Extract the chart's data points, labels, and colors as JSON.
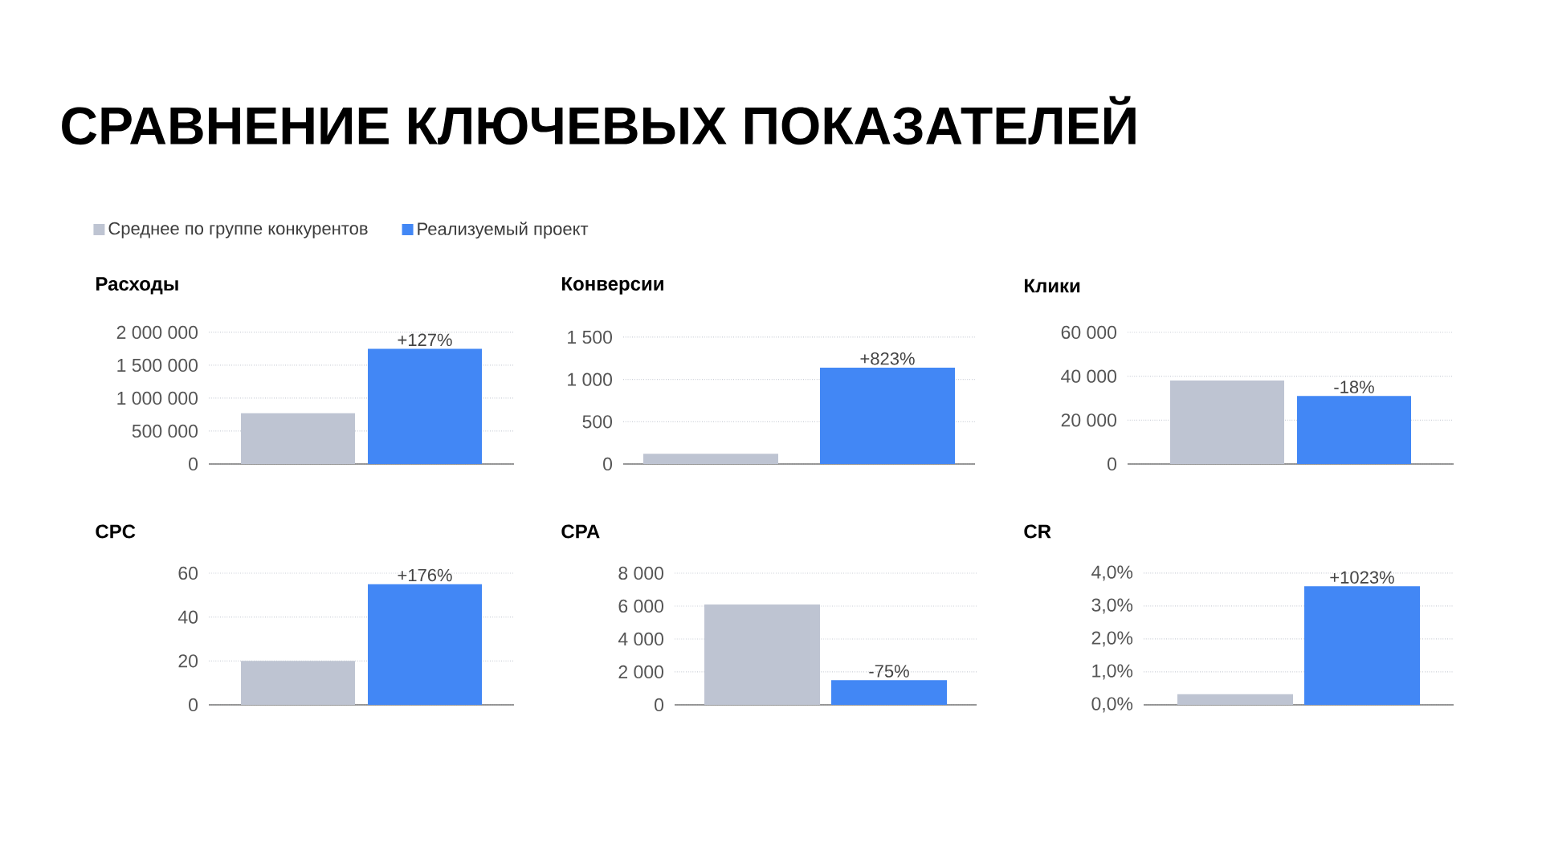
{
  "chart_data": [
    {
      "type": "other",
      "title": "СРАВНЕНИЕ КЛЮЧЕВЫХ ПОКАЗАТЕЛЕЙ"
    },
    {
      "type": "bar",
      "title": "Расходы",
      "categories": [
        null
      ],
      "series": [
        {
          "name": "Среднее по группе конкурентов",
          "color": "#bec4d2",
          "values": [
            770000
          ]
        },
        {
          "name": "Реализуемый проект",
          "color": "#4287f5",
          "values": [
            1750000
          ]
        }
      ],
      "annotations": [
        {
          "text": "+127%",
          "y": 1750000
        }
      ],
      "ylim": [
        0,
        2000000
      ],
      "yticks": [
        0,
        {
          "value": 500000,
          "label": "500 000"
        },
        {
          "value": 1000000,
          "label": "1 000 000"
        },
        {
          "value": 1500000,
          "label": "1 500 000"
        },
        {
          "value": 2000000,
          "label": "2 000 000"
        }
      ],
      "grid": "y",
      "legend": "top left"
    },
    {
      "type": "bar",
      "title": "Конверсии",
      "categories": [
        null
      ],
      "series": [
        {
          "color": "#bec4d2",
          "values": [
            120
          ]
        },
        {
          "color": "#4287f5",
          "values": [
            1140
          ]
        }
      ],
      "annotations": [
        {
          "text": "+823%",
          "y": 1140
        }
      ],
      "ylim": [
        0,
        1500
      ],
      "yticks": [
        0,
        500,
        {
          "value": 1000,
          "label": "1 000"
        },
        {
          "value": 1500,
          "label": "1 500"
        }
      ],
      "grid": "y"
    },
    {
      "type": "bar",
      "title": "Клики",
      "categories": [
        null
      ],
      "series": [
        {
          "color": "#bec4d2",
          "values": [
            38000
          ]
        },
        {
          "color": "#4287f5",
          "values": [
            31000
          ]
        }
      ],
      "annotations": [
        {
          "text": "-18%",
          "y": 31000
        }
      ],
      "ylim": [
        0,
        60000
      ],
      "yticks": [
        0,
        {
          "value": 20000,
          "label": "20 000"
        },
        {
          "value": 40000,
          "label": "40 000"
        },
        {
          "value": 60000,
          "label": "60 000"
        }
      ],
      "grid": "y"
    },
    {
      "type": "bar",
      "title": "CPC",
      "categories": [
        null
      ],
      "series": [
        {
          "color": "#bec4d2",
          "values": [
            20
          ]
        },
        {
          "color": "#4287f5",
          "values": [
            55
          ]
        }
      ],
      "annotations": [
        {
          "text": "+176%",
          "y": 55
        }
      ],
      "ylim": [
        0,
        60
      ],
      "yticks": [
        0,
        20,
        40,
        60
      ],
      "grid": "y"
    },
    {
      "type": "bar",
      "title": "CPA",
      "categories": [
        null
      ],
      "series": [
        {
          "color": "#bec4d2",
          "values": [
            6100
          ]
        },
        {
          "color": "#4287f5",
          "values": [
            1500
          ]
        }
      ],
      "annotations": [
        {
          "text": "-75%",
          "y": 1500
        }
      ],
      "ylim": [
        0,
        8000
      ],
      "yticks": [
        0,
        {
          "value": 2000,
          "label": "2 000"
        },
        {
          "value": 4000,
          "label": "4 000"
        },
        {
          "value": 6000,
          "label": "6 000"
        },
        {
          "value": 8000,
          "label": "8 000"
        }
      ],
      "grid": "y"
    },
    {
      "type": "bar",
      "title": "CR",
      "categories": [
        null
      ],
      "series": [
        {
          "color": "#bec4d2",
          "values": [
            0.32
          ]
        },
        {
          "color": "#4287f5",
          "values": [
            3.6
          ]
        }
      ],
      "annotations": [
        {
          "text": "+1023%",
          "y": 3.6
        }
      ],
      "ylim": [
        0,
        4
      ],
      "yticks": [
        {
          "value": 0,
          "label": "0,0%"
        },
        {
          "value": 1,
          "label": "1,0%"
        },
        {
          "value": 2,
          "label": "2,0%"
        },
        {
          "value": 3,
          "label": "3,0%"
        },
        {
          "value": 4,
          "label": "4,0%"
        }
      ],
      "grid": "y"
    }
  ]
}
